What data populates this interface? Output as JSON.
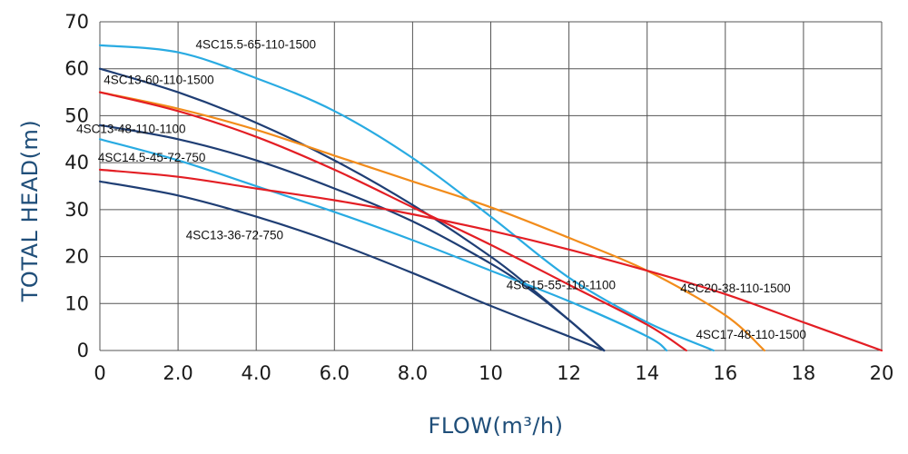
{
  "chart_data": {
    "type": "line",
    "title": "",
    "xlabel": "FLOW(m³/h)",
    "ylabel": "TOTAL HEAD(m)",
    "xlim": [
      0,
      20
    ],
    "ylim": [
      0,
      70
    ],
    "grid": true,
    "x_ticks": [
      {
        "value": 0,
        "label": "0"
      },
      {
        "value": 2,
        "label": "2.0"
      },
      {
        "value": 4,
        "label": "4.0"
      },
      {
        "value": 6,
        "label": "6.0"
      },
      {
        "value": 8,
        "label": "8.0"
      },
      {
        "value": 10,
        "label": "10"
      },
      {
        "value": 12,
        "label": "12"
      },
      {
        "value": 14,
        "label": "14"
      },
      {
        "value": 16,
        "label": "16"
      },
      {
        "value": 18,
        "label": "18"
      },
      {
        "value": 20,
        "label": "20"
      }
    ],
    "y_ticks": [
      {
        "value": 0,
        "label": "0"
      },
      {
        "value": 10,
        "label": "10"
      },
      {
        "value": 20,
        "label": "20"
      },
      {
        "value": 30,
        "label": "30"
      },
      {
        "value": 40,
        "label": "40"
      },
      {
        "value": 50,
        "label": "50"
      },
      {
        "value": 60,
        "label": "60"
      },
      {
        "value": 70,
        "label": "70"
      }
    ],
    "series": [
      {
        "name": "4SC15.5-65-110-1500",
        "color": "#29abe2",
        "label_at": [
          2.45,
          64.3
        ],
        "x": [
          0,
          2,
          4,
          6,
          8,
          10,
          12,
          14,
          15.7
        ],
        "y": [
          65,
          63.5,
          58,
          51,
          41,
          28.5,
          15.5,
          6,
          0
        ]
      },
      {
        "name": "4SC13-60-110-1500",
        "color": "#1f3e74",
        "label_at": [
          0.1,
          56.8
        ],
        "x": [
          0,
          2,
          4,
          6,
          8,
          10,
          11,
          12,
          12.9
        ],
        "y": [
          60,
          55,
          48.5,
          40.5,
          31,
          20,
          13.5,
          6.5,
          0
        ]
      },
      {
        "name": "4SC17-48-110-1500",
        "color": "#f28c1b",
        "label_at": [
          15.25,
          2.5
        ],
        "x": [
          0,
          2,
          4,
          6,
          8,
          10,
          12,
          14,
          16,
          17
        ],
        "y": [
          55,
          51.5,
          47,
          41.5,
          36,
          30.5,
          24,
          17,
          7.5,
          0
        ]
      },
      {
        "name": "4SC15-55-110-1100",
        "color": "#e31e24",
        "label_at": [
          10.4,
          13.1
        ],
        "x": [
          0,
          2,
          4,
          6,
          8,
          10,
          12,
          14,
          15
        ],
        "y": [
          55,
          51,
          45.5,
          38.5,
          30.5,
          22.5,
          14,
          5.5,
          0
        ]
      },
      {
        "name": "4SC13-48-110-1100",
        "color": "#1f3e74",
        "label_at": [
          -0.6,
          46.3
        ],
        "x": [
          0,
          2,
          4,
          6,
          8,
          10,
          11,
          12,
          12.9
        ],
        "y": [
          48,
          45,
          40.5,
          34.5,
          27.5,
          18.5,
          13,
          6.5,
          0
        ]
      },
      {
        "name": "4SC14.5-45-72-750",
        "color": "#29abe2",
        "label_at": [
          -0.05,
          40.2
        ],
        "x": [
          0,
          2,
          4,
          6,
          8,
          10,
          12,
          14,
          14.5
        ],
        "y": [
          45,
          40.5,
          35,
          29.5,
          23.5,
          17,
          10.5,
          3,
          0
        ]
      },
      {
        "name": "4SC20-38-110-1500",
        "color": "#e31e24",
        "label_at": [
          14.85,
          12.4
        ],
        "x": [
          0,
          2,
          4,
          6,
          8,
          10,
          12,
          14,
          16,
          18,
          20
        ],
        "y": [
          38.5,
          37,
          34.5,
          32,
          29,
          25.5,
          21.5,
          17,
          12,
          6,
          0
        ]
      },
      {
        "name": "4SC13-36-72-750",
        "color": "#1f3e74",
        "label_at": [
          2.2,
          23.7
        ],
        "x": [
          0,
          2,
          4,
          6,
          8,
          10,
          12,
          12.9
        ],
        "y": [
          36,
          33,
          28.5,
          23,
          16.5,
          9.5,
          3,
          0
        ]
      }
    ]
  }
}
